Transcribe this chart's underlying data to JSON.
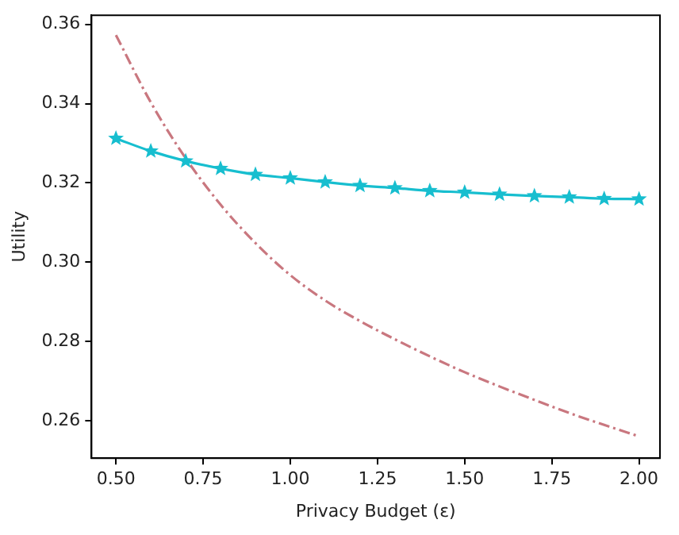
{
  "chart_data": {
    "type": "line",
    "xlabel": "Privacy Budget (ε)",
    "ylabel": "Utility",
    "x": [
      0.5,
      0.6,
      0.7,
      0.8,
      0.9,
      1.0,
      1.1,
      1.2,
      1.3,
      1.4,
      1.5,
      1.6,
      1.7,
      1.8,
      1.9,
      2.0
    ],
    "series": [
      {
        "color": "#17becf",
        "marker": "star",
        "line_style": "solid",
        "values": [
          0.3312,
          0.328,
          0.3255,
          0.3236,
          0.3221,
          0.3212,
          0.3202,
          0.3193,
          0.3187,
          0.318,
          0.3176,
          0.3171,
          0.3167,
          0.3164,
          0.316,
          0.3159
        ]
      },
      {
        "color": "#c9777f",
        "marker": "none",
        "line_style": "dashdot",
        "values": [
          0.3573,
          0.3403,
          0.3262,
          0.3145,
          0.3048,
          0.2967,
          0.2903,
          0.2851,
          0.2805,
          0.2762,
          0.2722,
          0.2686,
          0.2652,
          0.2619,
          0.2589,
          0.256
        ]
      }
    ],
    "xlim": [
      0.43,
      2.06
    ],
    "ylim": [
      0.2505,
      0.3623
    ],
    "xticks": [
      {
        "value": 0.5,
        "label": "0.50"
      },
      {
        "value": 0.75,
        "label": "0.75"
      },
      {
        "value": 1.0,
        "label": "1.00"
      },
      {
        "value": 1.25,
        "label": "1.25"
      },
      {
        "value": 1.5,
        "label": "1.50"
      },
      {
        "value": 1.75,
        "label": "1.75"
      },
      {
        "value": 2.0,
        "label": "2.00"
      }
    ],
    "yticks": [
      0.26,
      0.28,
      {
        "value": 0.3,
        "label": "0.30"
      },
      0.32,
      0.34,
      0.36
    ],
    "grid": false,
    "legend": false
  }
}
